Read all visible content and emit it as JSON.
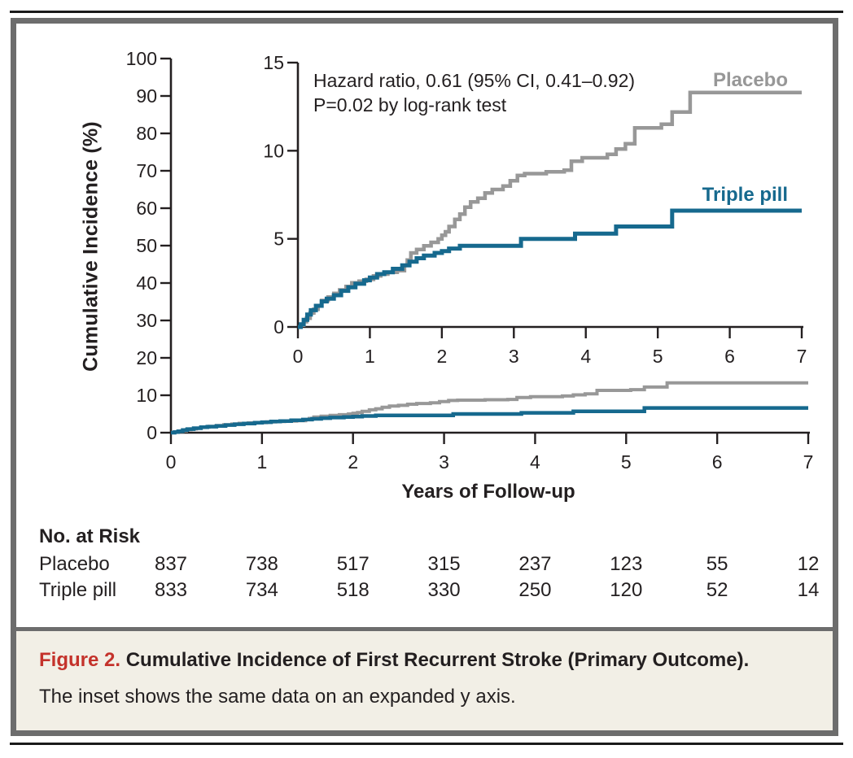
{
  "figure": {
    "caption": {
      "label": "Figure 2.",
      "title": "Cumulative Incidence of First Recurrent Stroke (Primary Outcome).",
      "subtitle": "The inset shows the same data on an expanded y axis."
    },
    "colors": {
      "accent_red": "#c4322b",
      "placebo_gray": "#989898",
      "triple_pill_teal": "#16698e",
      "axis_ink": "#231f20",
      "frame_gray": "#6d6d6d",
      "caption_bg": "#f2efe6"
    }
  },
  "chart_data": {
    "type": "line",
    "subtype": "kaplan-meier-step",
    "title": "",
    "xlabel": "Years of Follow-up",
    "x_ticks": [
      0,
      1,
      2,
      3,
      4,
      5,
      6,
      7
    ],
    "xlim": [
      0,
      7
    ],
    "main_axis": {
      "ylabel": "Cumulative Incidence (%)",
      "ylim": [
        0,
        100
      ],
      "yticks": [
        0,
        10,
        20,
        30,
        40,
        50,
        60,
        70,
        80,
        90,
        100
      ]
    },
    "inset_axis": {
      "ylabel": "",
      "ylim": [
        0,
        15
      ],
      "yticks": [
        0,
        5,
        10,
        15
      ],
      "note": "inset shows the same data on an expanded y axis"
    },
    "annotation": [
      "Hazard ratio, 0.61 (95% CI, 0.41–0.92)",
      "P=0.02 by log-rank test"
    ],
    "legend_position": "curve-end-labels",
    "grid": false,
    "series": [
      {
        "name": "Placebo",
        "color": "#989898",
        "points": [
          [
            0,
            0
          ],
          [
            0.04,
            0.1
          ],
          [
            0.08,
            0.3
          ],
          [
            0.12,
            0.5
          ],
          [
            0.17,
            0.8
          ],
          [
            0.22,
            1.0
          ],
          [
            0.28,
            1.2
          ],
          [
            0.33,
            1.5
          ],
          [
            0.42,
            1.7
          ],
          [
            0.5,
            1.9
          ],
          [
            0.58,
            2.1
          ],
          [
            0.67,
            2.3
          ],
          [
            0.75,
            2.5
          ],
          [
            0.85,
            2.6
          ],
          [
            0.95,
            2.7
          ],
          [
            1.05,
            2.9
          ],
          [
            1.15,
            3.0
          ],
          [
            1.25,
            3.1
          ],
          [
            1.38,
            3.2
          ],
          [
            1.48,
            3.5
          ],
          [
            1.52,
            3.8
          ],
          [
            1.57,
            4.2
          ],
          [
            1.65,
            4.4
          ],
          [
            1.75,
            4.6
          ],
          [
            1.85,
            4.8
          ],
          [
            1.95,
            5.0
          ],
          [
            2.0,
            5.2
          ],
          [
            2.05,
            5.4
          ],
          [
            2.1,
            5.7
          ],
          [
            2.18,
            6.1
          ],
          [
            2.25,
            6.4
          ],
          [
            2.32,
            6.8
          ],
          [
            2.4,
            7.1
          ],
          [
            2.5,
            7.3
          ],
          [
            2.6,
            7.6
          ],
          [
            2.7,
            7.8
          ],
          [
            2.85,
            8.0
          ],
          [
            2.95,
            8.3
          ],
          [
            3.05,
            8.6
          ],
          [
            3.15,
            8.7
          ],
          [
            3.45,
            8.8
          ],
          [
            3.7,
            8.9
          ],
          [
            3.8,
            9.4
          ],
          [
            3.95,
            9.6
          ],
          [
            4.3,
            9.8
          ],
          [
            4.42,
            10.1
          ],
          [
            4.55,
            10.4
          ],
          [
            4.68,
            11.3
          ],
          [
            5.05,
            11.5
          ],
          [
            5.2,
            12.2
          ],
          [
            5.45,
            13.3
          ],
          [
            7,
            13.3
          ]
        ]
      },
      {
        "name": "Triple pill",
        "color": "#16698e",
        "points": [
          [
            0,
            0
          ],
          [
            0.04,
            0.15
          ],
          [
            0.08,
            0.4
          ],
          [
            0.13,
            0.7
          ],
          [
            0.18,
            0.95
          ],
          [
            0.25,
            1.2
          ],
          [
            0.33,
            1.45
          ],
          [
            0.4,
            1.6
          ],
          [
            0.5,
            1.8
          ],
          [
            0.6,
            2.05
          ],
          [
            0.7,
            2.25
          ],
          [
            0.8,
            2.45
          ],
          [
            0.92,
            2.65
          ],
          [
            1.0,
            2.8
          ],
          [
            1.1,
            3.0
          ],
          [
            1.2,
            3.1
          ],
          [
            1.32,
            3.3
          ],
          [
            1.45,
            3.5
          ],
          [
            1.55,
            3.7
          ],
          [
            1.65,
            3.9
          ],
          [
            1.75,
            4.05
          ],
          [
            1.9,
            4.2
          ],
          [
            2.0,
            4.3
          ],
          [
            2.1,
            4.45
          ],
          [
            2.25,
            4.6
          ],
          [
            3.1,
            5.0
          ],
          [
            3.85,
            5.3
          ],
          [
            4.42,
            5.7
          ],
          [
            5.2,
            6.6
          ],
          [
            7,
            6.6
          ]
        ]
      }
    ],
    "no_at_risk": {
      "header": "No. at Risk",
      "times": [
        0,
        1,
        2,
        3,
        4,
        5,
        6,
        7
      ],
      "rows": [
        {
          "label": "Placebo",
          "values": [
            "837",
            "738",
            "517",
            "315",
            "237",
            "123",
            "55",
            "12"
          ]
        },
        {
          "label": "Triple pill",
          "values": [
            "833",
            "734",
            "518",
            "330",
            "250",
            "120",
            "52",
            "14"
          ]
        }
      ]
    }
  }
}
